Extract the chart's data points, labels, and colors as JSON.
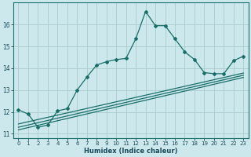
{
  "xlabel": "Humidex (Indice chaleur)",
  "bg_color": "#cce8ec",
  "grid_color": "#aacccc",
  "line_color": "#1a6e6a",
  "xlim": [
    -0.5,
    23.5
  ],
  "ylim": [
    10.8,
    17.0
  ],
  "xticks": [
    0,
    1,
    2,
    3,
    4,
    5,
    6,
    7,
    8,
    9,
    10,
    11,
    12,
    13,
    14,
    15,
    16,
    17,
    18,
    19,
    20,
    21,
    22,
    23
  ],
  "yticks": [
    11,
    12,
    13,
    14,
    15,
    16
  ],
  "main_line_x": [
    0,
    1,
    2,
    3,
    4,
    5,
    6,
    7,
    8,
    9,
    10,
    11,
    12,
    13,
    14,
    15,
    16,
    17,
    18,
    19,
    20,
    21,
    22,
    23
  ],
  "main_line_y": [
    12.1,
    11.9,
    11.3,
    11.4,
    12.05,
    12.15,
    13.0,
    13.6,
    14.15,
    14.3,
    14.4,
    14.45,
    15.35,
    16.6,
    15.95,
    15.95,
    15.35,
    14.75,
    14.4,
    13.8,
    13.75,
    13.75,
    14.35,
    14.55
  ],
  "line2_x": [
    0,
    23
  ],
  "line2_y": [
    11.45,
    13.78
  ],
  "line3_x": [
    0,
    23
  ],
  "line3_y": [
    11.3,
    13.68
  ],
  "line4_x": [
    0,
    23
  ],
  "line4_y": [
    11.18,
    13.58
  ]
}
